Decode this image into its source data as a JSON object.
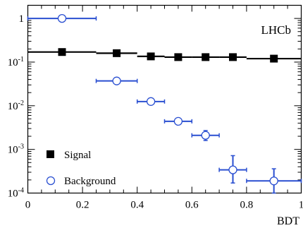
{
  "chart_data": {
    "type": "scatter",
    "xlabel": "BDT",
    "ylabel": "",
    "xlim": [
      0,
      1
    ],
    "ylim": [
      0.0001,
      2
    ],
    "y_scale": "log",
    "x_ticks": [
      "0",
      "0.2",
      "0.4",
      "0.6",
      "0.8",
      "1"
    ],
    "y_ticks": [
      {
        "value": 1,
        "mantissa": "1",
        "exp": ""
      },
      {
        "value": 0.1,
        "mantissa": "10",
        "exp": "-1"
      },
      {
        "value": 0.01,
        "mantissa": "10",
        "exp": "-2"
      },
      {
        "value": 0.001,
        "mantissa": "10",
        "exp": "-3"
      },
      {
        "value": 0.0001,
        "mantissa": "10",
        "exp": "-4"
      }
    ],
    "annotation": "LHCb",
    "legend_position": "bottom-left",
    "series": [
      {
        "name": "Signal",
        "marker": "filled-square",
        "color": "#000000",
        "points": [
          {
            "x": 0.125,
            "xlo": 0.0,
            "xhi": 0.25,
            "y": 0.17
          },
          {
            "x": 0.325,
            "xlo": 0.25,
            "xhi": 0.4,
            "y": 0.16
          },
          {
            "x": 0.45,
            "xlo": 0.4,
            "xhi": 0.5,
            "y": 0.135
          },
          {
            "x": 0.55,
            "xlo": 0.5,
            "xhi": 0.6,
            "y": 0.13
          },
          {
            "x": 0.65,
            "xlo": 0.6,
            "xhi": 0.7,
            "y": 0.13
          },
          {
            "x": 0.75,
            "xlo": 0.7,
            "xhi": 0.8,
            "y": 0.13
          },
          {
            "x": 0.9,
            "xlo": 0.8,
            "xhi": 1.0,
            "y": 0.12
          }
        ]
      },
      {
        "name": "Background",
        "marker": "open-circle",
        "color": "#2a4fd1",
        "points": [
          {
            "x": 0.125,
            "xlo": 0.0,
            "xhi": 0.25,
            "y": 1.0,
            "ylo": 0.97,
            "yhi": 1.03
          },
          {
            "x": 0.325,
            "xlo": 0.25,
            "xhi": 0.4,
            "y": 0.037,
            "ylo": 0.034,
            "yhi": 0.04
          },
          {
            "x": 0.45,
            "xlo": 0.4,
            "xhi": 0.5,
            "y": 0.0125,
            "ylo": 0.0113,
            "yhi": 0.0138
          },
          {
            "x": 0.55,
            "xlo": 0.5,
            "xhi": 0.6,
            "y": 0.0044,
            "ylo": 0.0039,
            "yhi": 0.005
          },
          {
            "x": 0.65,
            "xlo": 0.6,
            "xhi": 0.7,
            "y": 0.0021,
            "ylo": 0.0016,
            "yhi": 0.0027
          },
          {
            "x": 0.75,
            "xlo": 0.7,
            "xhi": 0.8,
            "y": 0.00034,
            "ylo": 0.00017,
            "yhi": 0.00072
          },
          {
            "x": 0.9,
            "xlo": 0.8,
            "xhi": 1.0,
            "y": 0.00019,
            "ylo": 0.0001,
            "yhi": 0.00036
          }
        ]
      }
    ]
  }
}
